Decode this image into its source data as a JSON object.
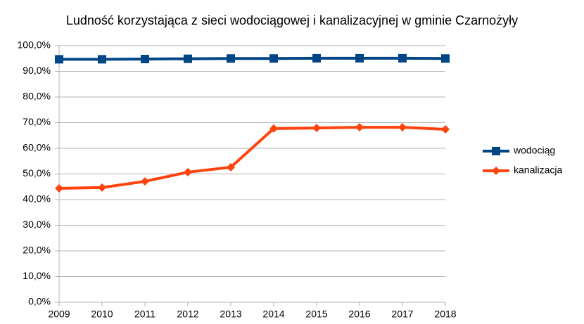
{
  "chart_data": {
    "type": "line",
    "title": "Ludność korzystająca z sieci wodociągowej i kanalizacyjnej w gminie Czarnożyły",
    "x": [
      2009,
      2010,
      2011,
      2012,
      2013,
      2014,
      2015,
      2016,
      2017,
      2018
    ],
    "xlim": [
      2009,
      2018
    ],
    "xticks": [
      2009,
      2010,
      2011,
      2012,
      2013,
      2014,
      2015,
      2016,
      2017,
      2018
    ],
    "ylim": [
      0,
      100
    ],
    "yticks": [
      {
        "value": 0,
        "label": "0,0%"
      },
      {
        "value": 10,
        "label": "10,0%"
      },
      {
        "value": 20,
        "label": "20,0%"
      },
      {
        "value": 30,
        "label": "30,0%"
      },
      {
        "value": 40,
        "label": "40,0%"
      },
      {
        "value": 50,
        "label": "50,0%"
      },
      {
        "value": 60,
        "label": "60,0%"
      },
      {
        "value": 70,
        "label": "70,0%"
      },
      {
        "value": 80,
        "label": "80,0%"
      },
      {
        "value": 90,
        "label": "90,0%"
      },
      {
        "value": 100,
        "label": "100,0%"
      }
    ],
    "grid": true,
    "legend": "right",
    "series": [
      {
        "name": "wodociąg",
        "color": "#004586",
        "marker": "square",
        "values": [
          94.7,
          94.7,
          94.8,
          94.9,
          95.0,
          95.0,
          95.1,
          95.1,
          95.1,
          95.0
        ]
      },
      {
        "name": "kanalizacja",
        "color": "#ff420e",
        "marker": "diamond",
        "values": [
          44.4,
          44.7,
          47.1,
          50.7,
          52.6,
          67.7,
          67.9,
          68.2,
          68.2,
          67.4
        ]
      }
    ]
  }
}
